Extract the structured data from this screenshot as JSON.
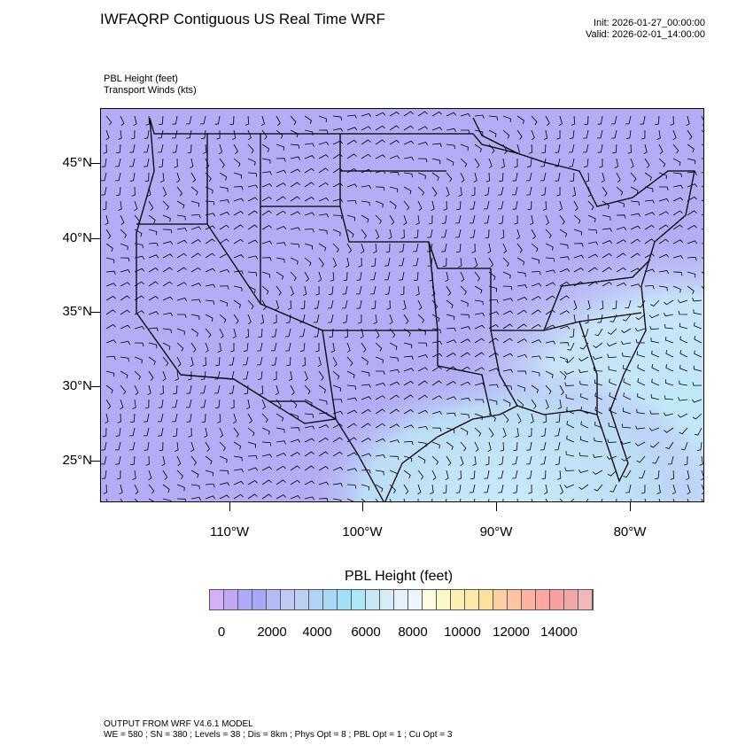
{
  "header": {
    "title": "IWFAQRP Contiguous US Real Time WRF",
    "init": "Init: 2026-01-27_00:00:00",
    "valid": "Valid: 2026-02-01_14:00:00"
  },
  "fields": {
    "line1": "PBL Height   (feet)",
    "line2": "Transport Winds   (kts)"
  },
  "map": {
    "lat_labels": [
      "45°N",
      "40°N",
      "35°N",
      "30°N",
      "25°N"
    ],
    "lon_labels": [
      "110°W",
      "100°W",
      "90°W",
      "80°W"
    ],
    "land_color": "#b4acf4",
    "ocean_color": "#c8ecf8",
    "border_color": "#000000"
  },
  "colorbar": {
    "title": "PBL Height  (feet)",
    "labels": [
      "0",
      "2000",
      "4000",
      "6000",
      "8000",
      "10000",
      "12000",
      "14000"
    ],
    "colors": [
      "#d4b0f8",
      "#c0a8f5",
      "#b0a8f8",
      "#a8a8f8",
      "#b4bcf6",
      "#c0c8f4",
      "#bcd0f6",
      "#b0d4f8",
      "#a8d8fa",
      "#a0e0f8",
      "#ace8f5",
      "#c8e8f8",
      "#d8ecf8",
      "#e4f2fa",
      "#ecf6fc",
      "#fcfce0",
      "#fcf8c8",
      "#fcf0b0",
      "#fce8a8",
      "#fce0a0",
      "#fcd0a0",
      "#fcc4a0",
      "#fcb4a0",
      "#fca8a0",
      "#f8a0a4",
      "#f0a8a8",
      "#f0b8b8",
      "#f8c8c8",
      "#fce4e4"
    ]
  },
  "footer": {
    "line1": "OUTPUT FROM WRF V4.6.1 MODEL",
    "line2": "WE = 580 ; SN = 380 ; Levels = 38 ; Dis = 8km ; Phys Opt = 8 ; PBL Opt = 1 ; Cu Opt = 3"
  }
}
